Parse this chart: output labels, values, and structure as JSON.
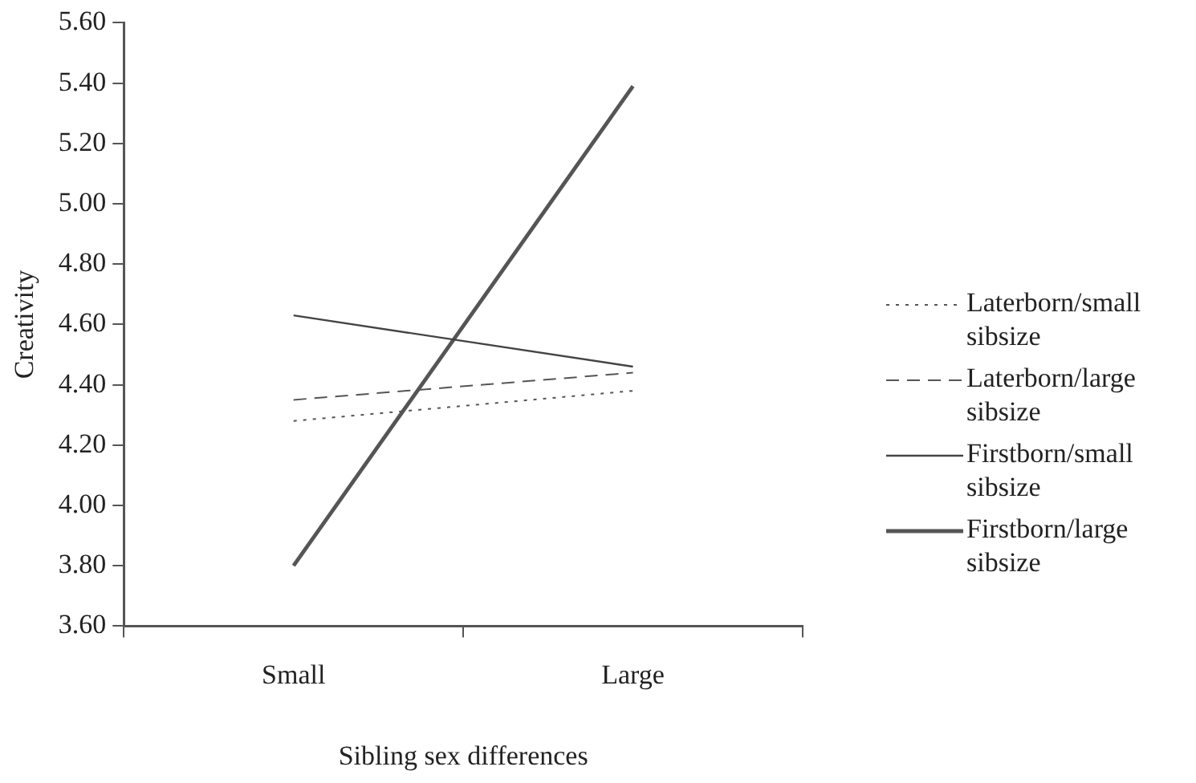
{
  "chart_data": {
    "type": "line",
    "xlabel": "Sibling sex differences",
    "ylabel": "Creativity",
    "categories": [
      "Small",
      "Large"
    ],
    "series": [
      {
        "name": "Laterborn/small sibsize",
        "color": "#555555",
        "line_style": "dotted",
        "values": [
          4.28,
          4.38
        ]
      },
      {
        "name": "Laterborn/large sibsize",
        "color": "#555555",
        "line_style": "dashed",
        "values": [
          4.35,
          4.44
        ]
      },
      {
        "name": "Firstborn/small sibsize",
        "color": "#444444",
        "line_style": "solid",
        "values": [
          4.63,
          4.46
        ]
      },
      {
        "name": "Firstborn/large sibsize",
        "color": "#555555",
        "line_style": "solid",
        "values": [
          3.8,
          5.39
        ]
      }
    ],
    "ylim": [
      3.6,
      5.6
    ],
    "yticks": [
      {
        "value": 3.6,
        "label": "3.60"
      },
      {
        "value": 3.8,
        "label": "3.80"
      },
      {
        "value": 4.0,
        "label": "4.00"
      },
      {
        "value": 4.2,
        "label": "4.20"
      },
      {
        "value": 4.4,
        "label": "4.40"
      },
      {
        "value": 4.6,
        "label": "4.60"
      },
      {
        "value": 4.8,
        "label": "4.80"
      },
      {
        "value": 5.0,
        "label": "5.00"
      },
      {
        "value": 5.2,
        "label": "5.20"
      },
      {
        "value": 5.4,
        "label": "5.40"
      },
      {
        "value": 5.6,
        "label": "5.60"
      }
    ],
    "grid": false,
    "legend": "right",
    "marker": "none"
  }
}
